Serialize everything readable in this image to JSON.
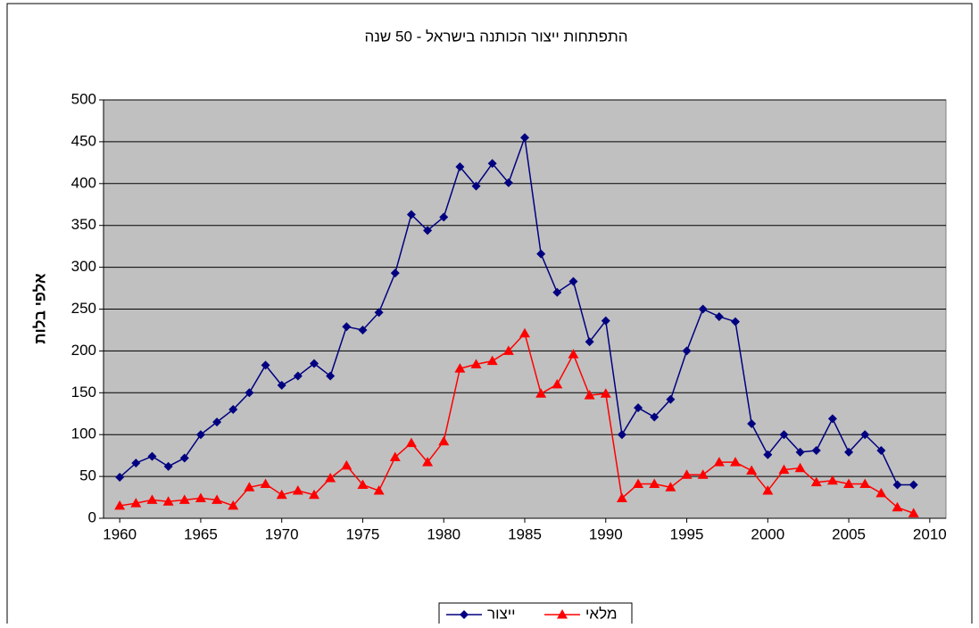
{
  "chart_data": {
    "type": "line",
    "title": "התפתחות ייצור הכותנה בישראל - 50 שנה",
    "y_label": "אלפי בלות",
    "x": [
      1960,
      1961,
      1962,
      1963,
      1964,
      1965,
      1966,
      1967,
      1968,
      1969,
      1970,
      1971,
      1972,
      1973,
      1974,
      1975,
      1976,
      1977,
      1978,
      1979,
      1980,
      1981,
      1982,
      1983,
      1984,
      1985,
      1986,
      1987,
      1988,
      1989,
      1990,
      1991,
      1992,
      1993,
      1994,
      1995,
      1996,
      1997,
      1998,
      1999,
      2000,
      2001,
      2002,
      2003,
      2004,
      2005,
      2006,
      2007,
      2008,
      2009
    ],
    "series": [
      {
        "name": "ייצור",
        "color": "#000080",
        "marker": "diamond",
        "values": [
          49,
          66,
          74,
          62,
          72,
          100,
          115,
          130,
          150,
          183,
          159,
          170,
          185,
          170,
          229,
          225,
          246,
          293,
          363,
          344,
          360,
          420,
          397,
          424,
          401,
          455,
          316,
          270,
          283,
          211,
          236,
          100,
          132,
          121,
          142,
          200,
          250,
          241,
          235,
          113,
          76,
          100,
          79,
          81,
          119,
          79,
          100,
          81,
          40,
          40
        ]
      },
      {
        "name": "מלאי",
        "color": "#ff0000",
        "marker": "triangle",
        "values": [
          15,
          18,
          22,
          20,
          22,
          24,
          22,
          15,
          37,
          41,
          28,
          33,
          28,
          48,
          63,
          40,
          33,
          73,
          90,
          67,
          92,
          179,
          184,
          188,
          200,
          221,
          149,
          160,
          196,
          147,
          149,
          24,
          41,
          41,
          37,
          52,
          52,
          67,
          67,
          57,
          33,
          58,
          60,
          43,
          45,
          41,
          41,
          30,
          13,
          6
        ]
      }
    ],
    "xlim": [
      1959,
      2011
    ],
    "xticks": [
      1960,
      1965,
      1970,
      1975,
      1980,
      1985,
      1990,
      1995,
      2000,
      2005,
      2010
    ],
    "ylim": [
      0,
      500
    ],
    "yticks": [
      0,
      50,
      100,
      150,
      200,
      250,
      300,
      350,
      400,
      450,
      500
    ],
    "grid": true,
    "legend": "bottom"
  }
}
